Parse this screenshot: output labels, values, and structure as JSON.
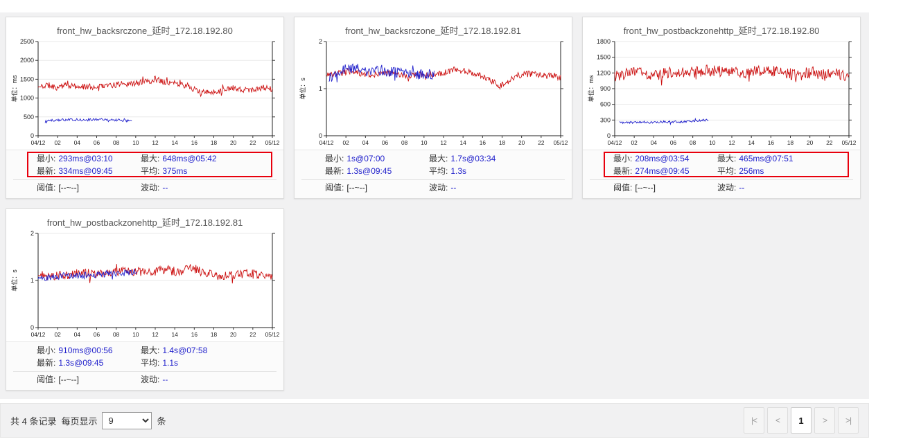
{
  "labels": {
    "min": "最小:",
    "max": "最大:",
    "latest": "最新:",
    "avg": "平均:",
    "threshold": "阈值:",
    "fluct": "波动:"
  },
  "colors": {
    "series_red": "#cc1111",
    "series_blue": "#2222cc",
    "value_text": "#2222cc",
    "highlight_box": "#e8000d"
  },
  "cards": [
    {
      "title": "front_hw_backsrczone_延时_172.18.192.80",
      "highlight": true,
      "stats": {
        "min": "293ms@03:10",
        "max": "648ms@05:42",
        "latest": "334ms@09:45",
        "avg": "375ms",
        "threshold": "[--~--]",
        "fluct": "--"
      },
      "chart_data": {
        "type": "line",
        "ylabel": "单位：ms",
        "xlabel": "",
        "ylim": [
          0,
          2500
        ],
        "yticks": [
          0,
          500,
          1000,
          1500,
          2000,
          2500
        ],
        "xticks": [
          "04/12",
          "02",
          "04",
          "06",
          "08",
          "10",
          "12",
          "14",
          "16",
          "18",
          "20",
          "22",
          "05/12"
        ],
        "series": [
          {
            "name": "red",
            "color": "#cc1111",
            "seed": 11,
            "noise": 80,
            "xrange": [
              0,
              1
            ],
            "points": [
              [
                0,
                1280
              ],
              [
                0.04,
                1350
              ],
              [
                0.08,
                1280
              ],
              [
                0.12,
                1340
              ],
              [
                0.16,
                1300
              ],
              [
                0.2,
                1310
              ],
              [
                0.24,
                1290
              ],
              [
                0.28,
                1340
              ],
              [
                0.32,
                1330
              ],
              [
                0.36,
                1390
              ],
              [
                0.4,
                1370
              ],
              [
                0.44,
                1420
              ],
              [
                0.48,
                1440
              ],
              [
                0.5,
                1520
              ],
              [
                0.52,
                1460
              ],
              [
                0.56,
                1420
              ],
              [
                0.6,
                1360
              ],
              [
                0.64,
                1330
              ],
              [
                0.68,
                1180
              ],
              [
                0.72,
                1140
              ],
              [
                0.76,
                1180
              ],
              [
                0.8,
                1230
              ],
              [
                0.84,
                1270
              ],
              [
                0.88,
                1210
              ],
              [
                0.92,
                1230
              ],
              [
                0.96,
                1270
              ],
              [
                1,
                1230
              ]
            ]
          },
          {
            "name": "blue",
            "color": "#2222cc",
            "seed": 12,
            "noise": 35,
            "xrange": [
              0.03,
              0.4
            ],
            "points": [
              [
                0.03,
                370
              ],
              [
                0.06,
                410
              ],
              [
                0.1,
                430
              ],
              [
                0.14,
                420
              ],
              [
                0.18,
                425
              ],
              [
                0.22,
                420
              ],
              [
                0.24,
                445
              ],
              [
                0.27,
                430
              ],
              [
                0.3,
                420
              ],
              [
                0.34,
                415
              ],
              [
                0.38,
                405
              ],
              [
                0.4,
                400
              ]
            ]
          }
        ]
      }
    },
    {
      "title": "front_hw_backsrczone_延时_172.18.192.81",
      "highlight": false,
      "stats": {
        "min": "1s@07:00",
        "max": "1.7s@03:34",
        "latest": "1.3s@09:45",
        "avg": "1.3s",
        "threshold": "[--~--]",
        "fluct": "--"
      },
      "chart_data": {
        "type": "line",
        "ylabel": "单位：s",
        "xlabel": "",
        "ylim": [
          0,
          2
        ],
        "yticks": [
          0,
          1,
          2
        ],
        "xticks": [
          "04/12",
          "02",
          "04",
          "06",
          "08",
          "10",
          "12",
          "14",
          "16",
          "18",
          "20",
          "22",
          "05/12"
        ],
        "series": [
          {
            "name": "red",
            "color": "#cc1111",
            "seed": 21,
            "noise": 0.07,
            "xrange": [
              0,
              1
            ],
            "points": [
              [
                0,
                1.28
              ],
              [
                0.05,
                1.32
              ],
              [
                0.1,
                1.38
              ],
              [
                0.15,
                1.33
              ],
              [
                0.2,
                1.3
              ],
              [
                0.25,
                1.33
              ],
              [
                0.3,
                1.3
              ],
              [
                0.35,
                1.28
              ],
              [
                0.4,
                1.3
              ],
              [
                0.45,
                1.3
              ],
              [
                0.5,
                1.33
              ],
              [
                0.54,
                1.4
              ],
              [
                0.58,
                1.38
              ],
              [
                0.62,
                1.33
              ],
              [
                0.66,
                1.28
              ],
              [
                0.7,
                1.18
              ],
              [
                0.74,
                1.05
              ],
              [
                0.77,
                1.12
              ],
              [
                0.8,
                1.25
              ],
              [
                0.85,
                1.32
              ],
              [
                0.9,
                1.3
              ],
              [
                0.95,
                1.3
              ],
              [
                1,
                1.24
              ]
            ]
          },
          {
            "name": "blue",
            "color": "#2222cc",
            "seed": 22,
            "noise": 0.12,
            "xrange": [
              0.01,
              0.46
            ],
            "points": [
              [
                0.01,
                1.22
              ],
              [
                0.05,
                1.38
              ],
              [
                0.09,
                1.45
              ],
              [
                0.13,
                1.42
              ],
              [
                0.17,
                1.38
              ],
              [
                0.21,
                1.4
              ],
              [
                0.25,
                1.38
              ],
              [
                0.29,
                1.36
              ],
              [
                0.33,
                1.32
              ],
              [
                0.37,
                1.32
              ],
              [
                0.42,
                1.3
              ],
              [
                0.46,
                1.3
              ]
            ]
          }
        ]
      }
    },
    {
      "title": "front_hw_postbackzonehttp_延时_172.18.192.80",
      "highlight": true,
      "stats": {
        "min": "208ms@03:54",
        "max": "465ms@07:51",
        "latest": "274ms@09:45",
        "avg": "256ms",
        "threshold": "[--~--]",
        "fluct": "--"
      },
      "chart_data": {
        "type": "line",
        "ylabel": "单位：ms",
        "xlabel": "",
        "ylim": [
          0,
          1800
        ],
        "yticks": [
          0,
          300,
          600,
          900,
          1200,
          1500,
          1800
        ],
        "xticks": [
          "04/12",
          "02",
          "04",
          "06",
          "08",
          "10",
          "12",
          "14",
          "16",
          "18",
          "20",
          "22",
          "05/12"
        ],
        "series": [
          {
            "name": "red",
            "color": "#cc1111",
            "seed": 31,
            "noise": 110,
            "xrange": [
              0,
              1
            ],
            "points": [
              [
                0,
                1140
              ],
              [
                0.05,
                1180
              ],
              [
                0.1,
                1210
              ],
              [
                0.15,
                1160
              ],
              [
                0.2,
                1180
              ],
              [
                0.25,
                1210
              ],
              [
                0.3,
                1230
              ],
              [
                0.35,
                1220
              ],
              [
                0.4,
                1250
              ],
              [
                0.45,
                1240
              ],
              [
                0.5,
                1230
              ],
              [
                0.55,
                1210
              ],
              [
                0.6,
                1230
              ],
              [
                0.65,
                1240
              ],
              [
                0.7,
                1230
              ],
              [
                0.75,
                1180
              ],
              [
                0.8,
                1160
              ],
              [
                0.85,
                1210
              ],
              [
                0.9,
                1150
              ],
              [
                0.95,
                1190
              ],
              [
                1,
                1130
              ]
            ]
          },
          {
            "name": "blue",
            "color": "#2222cc",
            "seed": 32,
            "noise": 22,
            "xrange": [
              0.02,
              0.4
            ],
            "points": [
              [
                0.02,
                250
              ],
              [
                0.08,
                255
              ],
              [
                0.14,
                258
              ],
              [
                0.2,
                262
              ],
              [
                0.26,
                265
              ],
              [
                0.32,
                272
              ],
              [
                0.36,
                285
              ],
              [
                0.39,
                300
              ],
              [
                0.4,
                298
              ]
            ]
          }
        ]
      }
    },
    {
      "title": "front_hw_postbackzonehttp_延时_172.18.192.81",
      "highlight": false,
      "stats": {
        "min": "910ms@00:56",
        "max": "1.4s@07:58",
        "latest": "1.3s@09:45",
        "avg": "1.1s",
        "threshold": "[--~--]",
        "fluct": "--"
      },
      "chart_data": {
        "type": "line",
        "ylabel": "单位：s",
        "xlabel": "",
        "ylim": [
          0,
          2
        ],
        "yticks": [
          0,
          1,
          2
        ],
        "xticks": [
          "04/12",
          "02",
          "04",
          "06",
          "08",
          "10",
          "12",
          "14",
          "16",
          "18",
          "20",
          "22",
          "05/12"
        ],
        "series": [
          {
            "name": "red",
            "color": "#cc1111",
            "seed": 41,
            "noise": 0.1,
            "xrange": [
              0,
              1
            ],
            "points": [
              [
                0,
                1.1
              ],
              [
                0.05,
                1.12
              ],
              [
                0.1,
                1.1
              ],
              [
                0.15,
                1.14
              ],
              [
                0.2,
                1.16
              ],
              [
                0.25,
                1.14
              ],
              [
                0.3,
                1.16
              ],
              [
                0.35,
                1.18
              ],
              [
                0.4,
                1.2
              ],
              [
                0.45,
                1.18
              ],
              [
                0.5,
                1.2
              ],
              [
                0.55,
                1.22
              ],
              [
                0.6,
                1.18
              ],
              [
                0.65,
                1.28
              ],
              [
                0.7,
                1.18
              ],
              [
                0.75,
                1.12
              ],
              [
                0.8,
                1.1
              ],
              [
                0.85,
                1.14
              ],
              [
                0.9,
                1.14
              ],
              [
                0.95,
                1.12
              ],
              [
                1,
                1.08
              ]
            ]
          },
          {
            "name": "blue",
            "color": "#2222cc",
            "seed": 42,
            "noise": 0.07,
            "xrange": [
              0,
              0.42
            ],
            "points": [
              [
                0,
                1.04
              ],
              [
                0.06,
                1.08
              ],
              [
                0.12,
                1.1
              ],
              [
                0.18,
                1.1
              ],
              [
                0.24,
                1.12
              ],
              [
                0.3,
                1.14
              ],
              [
                0.36,
                1.16
              ],
              [
                0.42,
                1.18
              ]
            ]
          }
        ]
      }
    }
  ],
  "footer": {
    "records": "共 4 条记录",
    "per_page_label": "每页显示",
    "per_page_value": "9",
    "unit": "条",
    "pagination": {
      "first": "|<",
      "prev": "<",
      "page": "1",
      "next": ">",
      "last": ">|"
    }
  }
}
